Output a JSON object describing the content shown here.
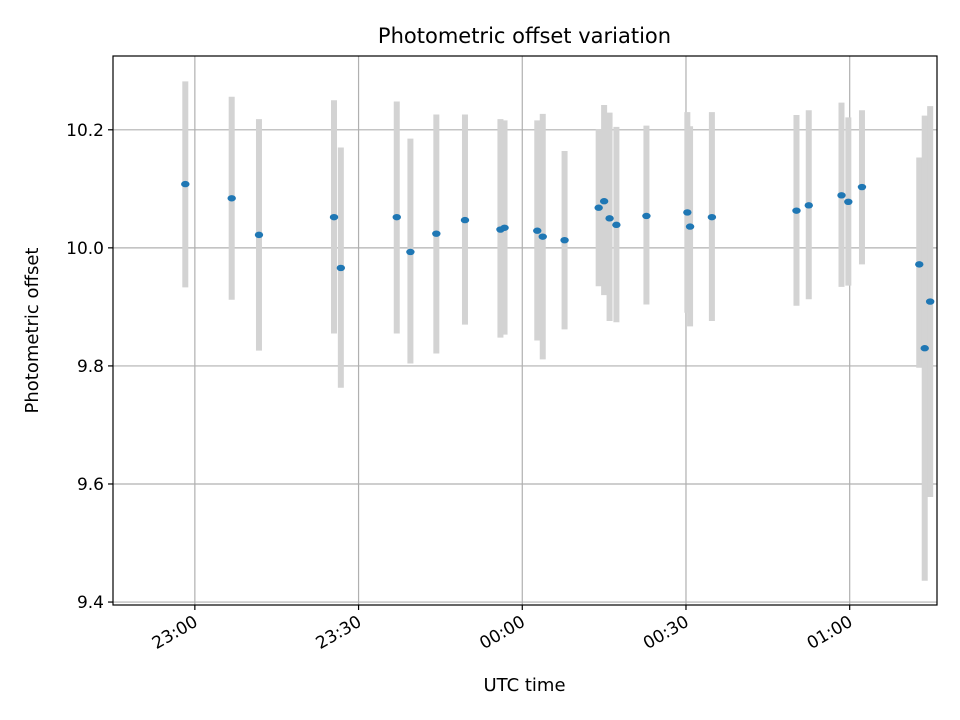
{
  "chart_data": {
    "type": "scatter",
    "title": "Photometric offset variation",
    "xlabel": "UTC time",
    "ylabel": "Photometric offset",
    "xlim_minutes_from_2300": [
      -15,
      136
    ],
    "ylim": [
      9.395,
      10.325
    ],
    "grid": true,
    "x_ticks": [
      "23:00",
      "23:30",
      "00:00",
      "00:30",
      "01:00"
    ],
    "y_ticks": [
      "9.4",
      "9.6",
      "9.8",
      "10.0",
      "10.2"
    ],
    "colors": {
      "point": "#1f77b4",
      "errorbar": "#d3d3d3",
      "grid": "#b0b0b0"
    },
    "points": [
      {
        "t": "22:58:15",
        "y": 10.108,
        "lo": 9.933,
        "hi": 10.282
      },
      {
        "t": "23:06:45",
        "y": 10.084,
        "lo": 9.912,
        "hi": 10.256
      },
      {
        "t": "23:11:45",
        "y": 10.022,
        "lo": 9.826,
        "hi": 10.218
      },
      {
        "t": "23:25:30",
        "y": 10.052,
        "lo": 9.855,
        "hi": 10.25
      },
      {
        "t": "23:26:45",
        "y": 9.966,
        "lo": 9.763,
        "hi": 10.17
      },
      {
        "t": "23:37:00",
        "y": 10.052,
        "lo": 9.855,
        "hi": 10.248
      },
      {
        "t": "23:39:30",
        "y": 9.993,
        "lo": 9.804,
        "hi": 10.185
      },
      {
        "t": "23:44:15",
        "y": 10.024,
        "lo": 9.821,
        "hi": 10.226
      },
      {
        "t": "23:49:30",
        "y": 10.047,
        "lo": 9.87,
        "hi": 10.226
      },
      {
        "t": "23:56:00",
        "y": 10.031,
        "lo": 9.848,
        "hi": 10.218
      },
      {
        "t": "23:56:45",
        "y": 10.034,
        "lo": 9.853,
        "hi": 10.216
      },
      {
        "t": "00:02:45",
        "y": 10.029,
        "lo": 9.843,
        "hi": 10.216
      },
      {
        "t": "00:03:45",
        "y": 10.019,
        "lo": 9.811,
        "hi": 10.227
      },
      {
        "t": "00:07:45",
        "y": 10.013,
        "lo": 9.862,
        "hi": 10.164
      },
      {
        "t": "00:14:00",
        "y": 10.068,
        "lo": 9.935,
        "hi": 10.201
      },
      {
        "t": "00:15:00",
        "y": 10.079,
        "lo": 9.92,
        "hi": 10.242
      },
      {
        "t": "00:16:00",
        "y": 10.05,
        "lo": 9.876,
        "hi": 10.229
      },
      {
        "t": "00:17:15",
        "y": 10.039,
        "lo": 9.874,
        "hi": 10.205
      },
      {
        "t": "00:22:45",
        "y": 10.054,
        "lo": 9.904,
        "hi": 10.207
      },
      {
        "t": "00:30:15",
        "y": 10.06,
        "lo": 9.89,
        "hi": 10.23
      },
      {
        "t": "00:30:45",
        "y": 10.036,
        "lo": 9.867,
        "hi": 10.206
      },
      {
        "t": "00:34:45",
        "y": 10.052,
        "lo": 9.876,
        "hi": 10.23
      },
      {
        "t": "00:50:15",
        "y": 10.063,
        "lo": 9.902,
        "hi": 10.225
      },
      {
        "t": "00:52:30",
        "y": 10.072,
        "lo": 9.913,
        "hi": 10.233
      },
      {
        "t": "00:58:30",
        "y": 10.089,
        "lo": 9.934,
        "hi": 10.246
      },
      {
        "t": "00:59:45",
        "y": 10.078,
        "lo": 9.936,
        "hi": 10.221
      },
      {
        "t": "01:02:15",
        "y": 10.103,
        "lo": 9.972,
        "hi": 10.233
      },
      {
        "t": "01:12:45",
        "y": 9.972,
        "lo": 9.797,
        "hi": 10.153
      },
      {
        "t": "01:13:45",
        "y": 9.83,
        "lo": 9.436,
        "hi": 10.224
      },
      {
        "t": "01:14:45",
        "y": 9.909,
        "lo": 9.578,
        "hi": 10.24
      }
    ]
  }
}
